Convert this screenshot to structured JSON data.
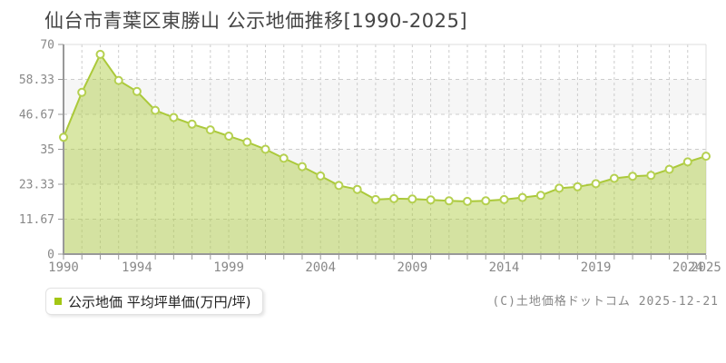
{
  "title": "仙台市青葉区東勝山 公示地価推移[1990-2025]",
  "legend": {
    "label": "公示地価 平均坪単価(万円/坪)",
    "marker_color": "#a3c614"
  },
  "copyright": "(C)土地価格ドットコム 2025-12-21",
  "colors": {
    "line": "#abc93a",
    "area_fill": "rgba(171,201,58,0.45)",
    "marker_fill": "#ffffff",
    "marker_stroke": "#b5d050",
    "grid": "#cccccc",
    "band": "#f6f6f6",
    "plot_border": "#dddddd",
    "axis": "#999999",
    "tick_text": "#888888",
    "title_text": "#444444"
  },
  "chart_data": {
    "type": "area",
    "title": "仙台市青葉区東勝山 公示地価推移[1990-2025]",
    "series_name": "公示地価 平均坪単価(万円/坪)",
    "ylabel": "平均坪単価(万円/坪)",
    "xlabel": "",
    "x": [
      1990,
      1991,
      1992,
      1993,
      1994,
      1995,
      1996,
      1997,
      1998,
      1999,
      2000,
      2001,
      2002,
      2003,
      2004,
      2005,
      2006,
      2007,
      2008,
      2009,
      2010,
      2011,
      2012,
      2013,
      2014,
      2015,
      2016,
      2017,
      2018,
      2019,
      2020,
      2021,
      2022,
      2023,
      2024,
      2025
    ],
    "values": [
      39.0,
      54.0,
      66.7,
      58.0,
      54.3,
      48.0,
      45.6,
      43.4,
      41.5,
      39.4,
      37.4,
      35.0,
      32.0,
      29.2,
      26.1,
      22.9,
      21.6,
      18.2,
      18.5,
      18.4,
      18.1,
      17.8,
      17.6,
      17.8,
      18.2,
      18.9,
      19.6,
      22.0,
      22.5,
      23.5,
      25.3,
      26.0,
      26.3,
      28.3,
      30.8,
      32.7
    ],
    "ylim": [
      0,
      70
    ],
    "ytick_values": [
      70,
      58.33,
      46.67,
      35,
      23.33,
      11.67,
      0
    ],
    "ytick_labels": [
      "70",
      "58.33",
      "46.67",
      "35",
      "23.33",
      "11.67",
      "0"
    ],
    "xtick_years": [
      1990,
      1994,
      1999,
      2004,
      2009,
      2014,
      2019,
      2024,
      2025
    ],
    "xtick_labels": [
      "1990",
      "1994",
      "1999",
      "2004",
      "2009",
      "2014",
      "2019",
      "2024",
      "2025"
    ],
    "grid": true,
    "band_striping": "alternating-horizontal",
    "legend_position": "bottom-left"
  }
}
